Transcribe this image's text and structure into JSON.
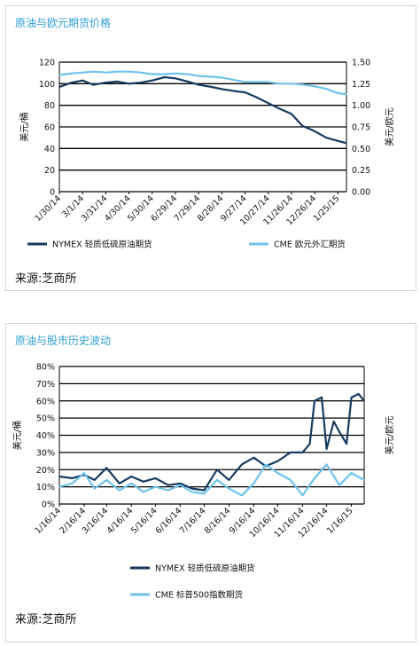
{
  "colors": {
    "dark": "#173a5e",
    "light": "#6ec2ea",
    "title": "#2e9fd1",
    "grid": "#000000"
  },
  "panel1": {
    "title": "原油与欧元期货价格",
    "source": "来源:芝商所",
    "chart_data": {
      "type": "line",
      "title": "原油与欧元期货价格",
      "xlabel": "",
      "ylabel": "美元/桶",
      "y2label": "美元/欧元",
      "ylim": [
        0,
        120
      ],
      "y2lim": [
        0,
        1.5
      ],
      "yticks": [
        "0",
        "20",
        "40",
        "60",
        "80",
        "100",
        "120"
      ],
      "y2ticks": [
        "0.00",
        "0.25",
        "0.50",
        "0.75",
        "1.00",
        "1.25",
        "1.50"
      ],
      "xticks": [
        "1/30/14",
        "3/1/14",
        "3/31/14",
        "4/30/14",
        "5/30/14",
        "6/29/14",
        "7/29/14",
        "8/28/14",
        "9/27/14",
        "10/27/14",
        "11/26/14",
        "12/26/14",
        "1/25/15"
      ],
      "grid": true,
      "legend": "bottom",
      "series": [
        {
          "name": "NYMEX 轻质低硫原油期货",
          "axis": "left",
          "color": "#173a5e",
          "x": [
            "1/30/14",
            "2/15/14",
            "3/1/14",
            "3/15/14",
            "3/31/14",
            "4/15/14",
            "4/30/14",
            "5/15/14",
            "5/30/14",
            "6/15/14",
            "6/29/14",
            "7/15/14",
            "7/29/14",
            "8/15/14",
            "8/28/14",
            "9/15/14",
            "9/27/14",
            "10/10/14",
            "10/27/14",
            "11/10/14",
            "11/26/14",
            "12/10/14",
            "12/26/14",
            "1/10/15",
            "1/25/15",
            "2/5/15"
          ],
          "values": [
            97,
            101,
            103,
            99,
            101,
            102,
            100,
            101,
            103,
            106,
            105,
            102,
            99,
            97,
            95,
            93,
            92,
            88,
            82,
            77,
            72,
            61,
            56,
            50,
            47,
            45
          ]
        },
        {
          "name": "CME 欧元外汇期货",
          "axis": "right",
          "color": "#6ec2ea",
          "x": [
            "1/30/14",
            "2/15/14",
            "3/1/14",
            "3/15/14",
            "3/31/14",
            "4/15/14",
            "4/30/14",
            "5/15/14",
            "5/30/14",
            "6/15/14",
            "6/29/14",
            "7/15/14",
            "7/29/14",
            "8/15/14",
            "8/28/14",
            "9/15/14",
            "9/27/14",
            "10/10/14",
            "10/27/14",
            "11/10/14",
            "11/26/14",
            "12/10/14",
            "12/26/14",
            "1/10/15",
            "1/25/15",
            "2/5/15"
          ],
          "values": [
            1.35,
            1.37,
            1.38,
            1.39,
            1.38,
            1.39,
            1.39,
            1.38,
            1.36,
            1.36,
            1.37,
            1.36,
            1.34,
            1.33,
            1.32,
            1.29,
            1.27,
            1.27,
            1.27,
            1.25,
            1.25,
            1.24,
            1.22,
            1.19,
            1.14,
            1.13
          ]
        }
      ]
    }
  },
  "panel2": {
    "title": "原油与股市历史波动",
    "source": "来源:芝商所",
    "chart_data": {
      "type": "line",
      "title": "原油与股市历史波动",
      "xlabel": "",
      "ylabel": "美元/桶",
      "y2label": "美元/欧元",
      "ylim": [
        0,
        80
      ],
      "yticks": [
        "0%",
        "10%",
        "20%",
        "30%",
        "40%",
        "50%",
        "60%",
        "70%",
        "80%"
      ],
      "xticks": [
        "1/16/14",
        "2/16/14",
        "3/16/14",
        "4/16/14",
        "5/16/14",
        "6/16/14",
        "7/16/14",
        "8/16/14",
        "9/16/14",
        "10/16/14",
        "11/16/14",
        "12/16/14",
        "1/16/15"
      ],
      "grid": true,
      "legend": "bottom",
      "series": [
        {
          "name": "NYMEX 轻质低硫原油期货",
          "color": "#173a5e",
          "x": [
            "1/16/14",
            "2/1/14",
            "2/16/14",
            "3/1/14",
            "3/16/14",
            "4/1/14",
            "4/16/14",
            "5/1/14",
            "5/16/14",
            "6/1/14",
            "6/16/14",
            "7/1/14",
            "7/16/14",
            "8/1/14",
            "8/16/14",
            "9/1/14",
            "9/16/14",
            "10/1/14",
            "10/16/14",
            "11/1/14",
            "11/16/14",
            "11/25/14",
            "12/1/14",
            "12/10/14",
            "12/16/14",
            "12/25/14",
            "1/1/15",
            "1/10/15",
            "1/16/15",
            "1/25/15",
            "2/1/15"
          ],
          "values": [
            16,
            15,
            17,
            14,
            21,
            12,
            16,
            13,
            15,
            11,
            12,
            9,
            8,
            20,
            14,
            23,
            27,
            22,
            25,
            30,
            30,
            35,
            60,
            62,
            32,
            48,
            42,
            35,
            62,
            64,
            60
          ]
        },
        {
          "name": "CME 标普500指数期货",
          "color": "#6ec2ea",
          "x": [
            "1/16/14",
            "2/1/14",
            "2/16/14",
            "3/1/14",
            "3/16/14",
            "4/1/14",
            "4/16/14",
            "5/1/14",
            "5/16/14",
            "6/1/14",
            "6/16/14",
            "7/1/14",
            "7/16/14",
            "8/1/14",
            "8/16/14",
            "9/1/14",
            "9/16/14",
            "10/1/14",
            "10/16/14",
            "11/1/14",
            "11/16/14",
            "12/1/14",
            "12/16/14",
            "1/1/15",
            "1/16/15",
            "2/1/15"
          ],
          "values": [
            10,
            12,
            18,
            9,
            14,
            8,
            12,
            7,
            10,
            8,
            11,
            7,
            6,
            14,
            9,
            5,
            12,
            23,
            18,
            14,
            5,
            15,
            23,
            11,
            18,
            14
          ]
        }
      ]
    }
  }
}
